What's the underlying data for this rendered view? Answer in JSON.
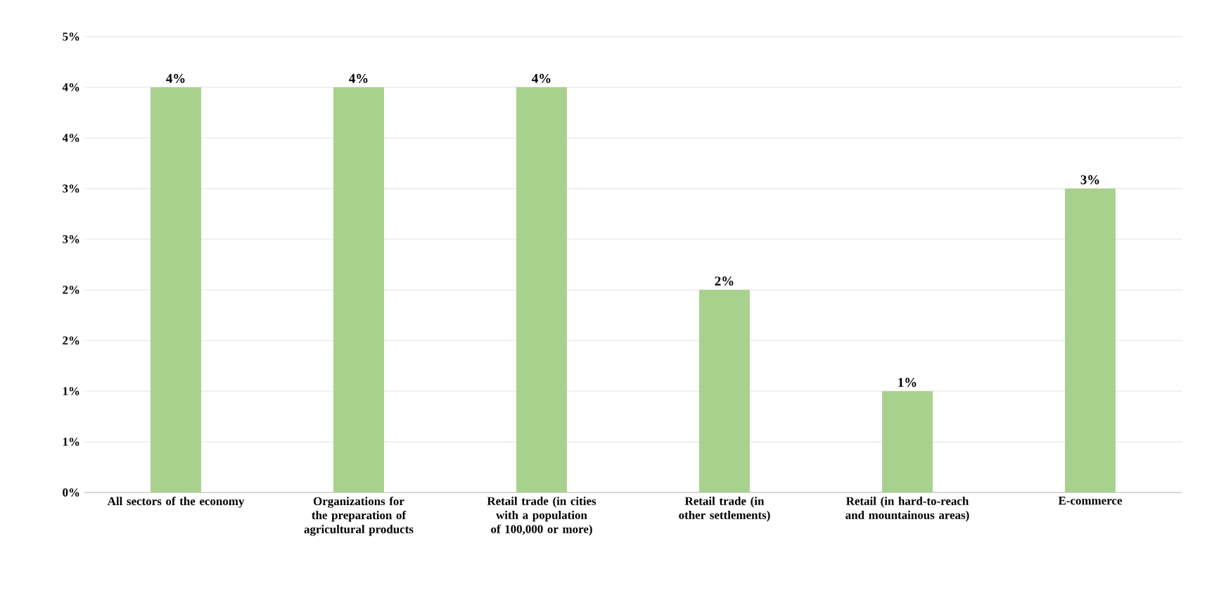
{
  "chart_data": {
    "type": "bar",
    "categories": [
      "All sectors of the economy",
      "Organizations for the preparation of agricultural products",
      "Retail trade (in cities with a population of 100,000 or more)",
      "Retail trade (in other settlements)",
      "Retail (in hard-to-reach and mountainous areas)",
      "E-commerce"
    ],
    "values": [
      4,
      4,
      4,
      2,
      1,
      3
    ],
    "value_labels": [
      "4%",
      "4%",
      "4%",
      "2%",
      "1%",
      "3%"
    ],
    "color": "#a9d18e",
    "ylim": [
      0,
      4.5
    ],
    "yticks": [
      {
        "value": 0,
        "label": "0%"
      },
      {
        "value": 0.5,
        "label": "1%"
      },
      {
        "value": 1,
        "label": "1%"
      },
      {
        "value": 1.5,
        "label": "2%"
      },
      {
        "value": 2,
        "label": "2%"
      },
      {
        "value": 2.5,
        "label": "3%"
      },
      {
        "value": 3,
        "label": "3%"
      },
      {
        "value": 3.5,
        "label": "4%"
      },
      {
        "value": 4,
        "label": "4%"
      },
      {
        "value": 4.5,
        "label": "5%"
      }
    ],
    "grid": "y"
  }
}
